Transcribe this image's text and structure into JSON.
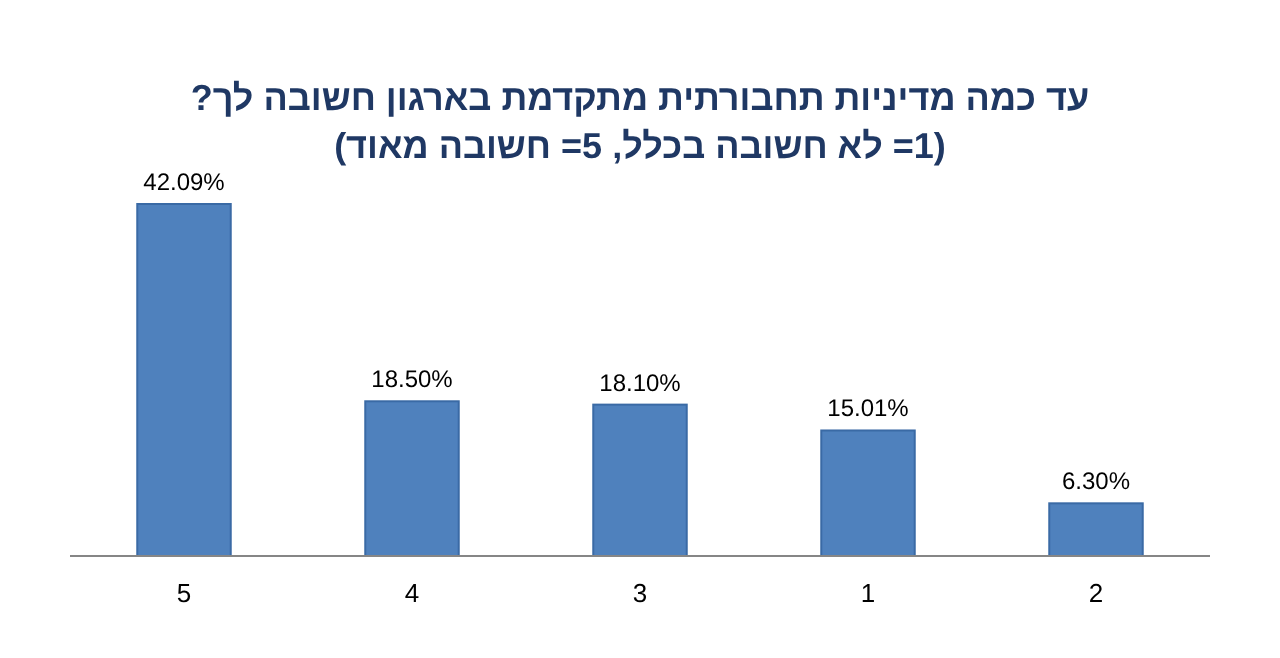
{
  "chart_data": {
    "type": "bar",
    "title": "עד כמה מדיניות תחבורתית מתקדמת בארגון חשובה לך?",
    "subtitle": "(1= לא חשובה בכלל, 5= חשובה מאוד)",
    "categories": [
      "5",
      "4",
      "3",
      "1",
      "2"
    ],
    "values": [
      42.09,
      18.5,
      18.1,
      15.01,
      6.3
    ],
    "value_labels": [
      "42.09%",
      "18.50%",
      "18.10%",
      "15.01%",
      "6.30%"
    ],
    "color": "#4f81bd"
  }
}
